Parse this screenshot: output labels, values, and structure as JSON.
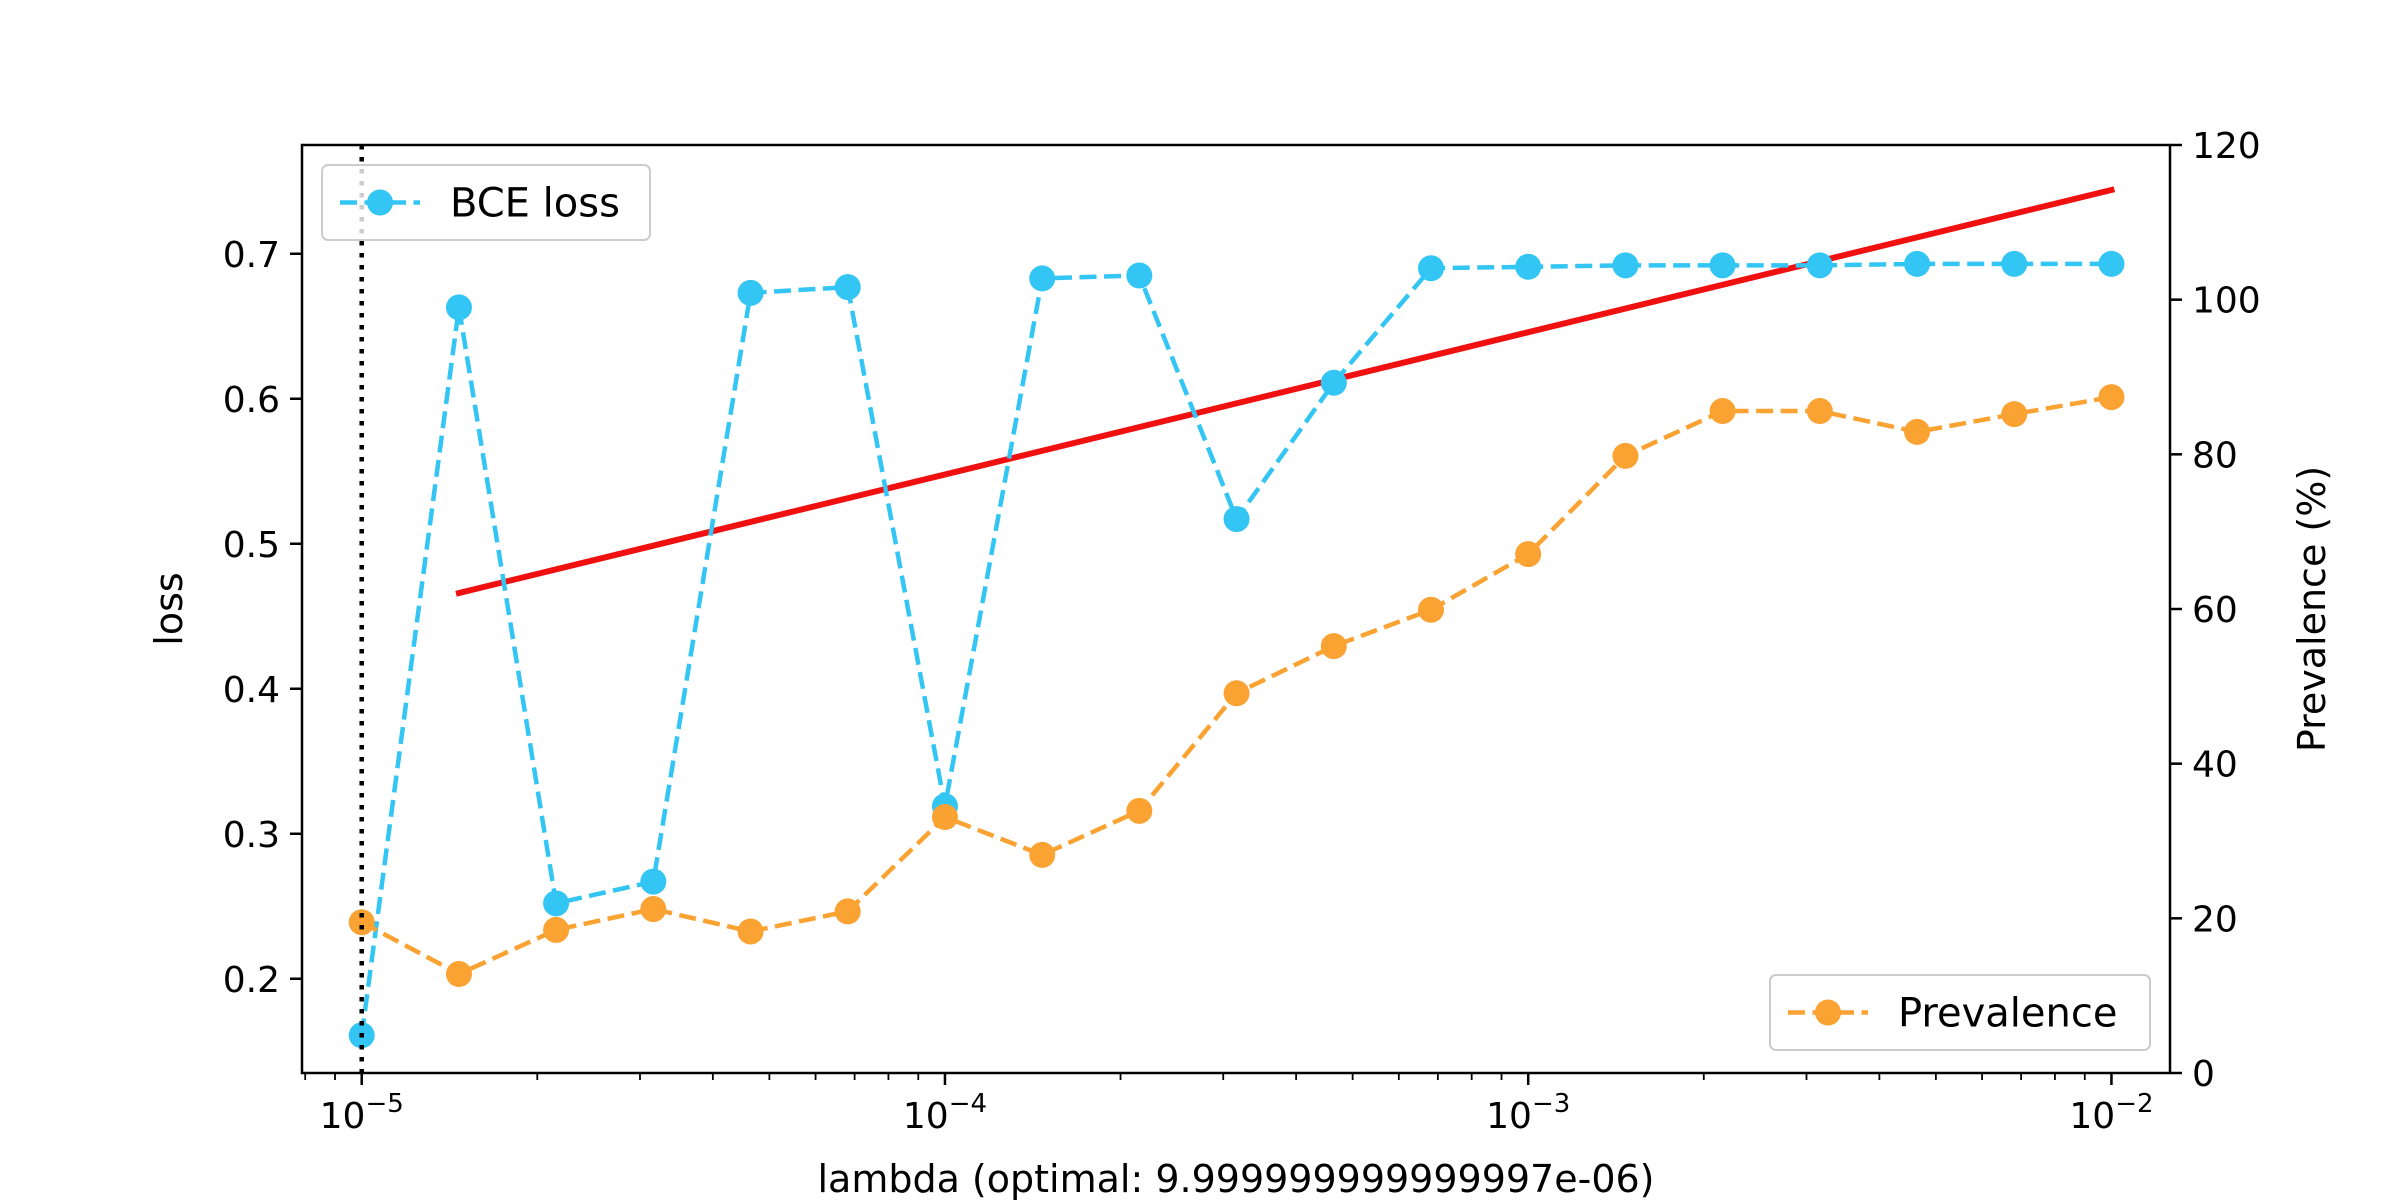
{
  "chart_data": {
    "type": "line",
    "xscale": "log",
    "xlabel": "lambda (optimal: 9.999999999999997e-06)",
    "ylabel_left": "loss",
    "ylabel_right": "Prevalence (%)",
    "xlim": [
      7.9e-06,
      0.0126
    ],
    "ylim_left": [
      0.135,
      0.775
    ],
    "ylim_right": [
      0,
      120
    ],
    "x_ticks": [
      {
        "value": 1e-05,
        "base": "10",
        "exp": "−5"
      },
      {
        "value": 0.0001,
        "base": "10",
        "exp": "−4"
      },
      {
        "value": 0.001,
        "base": "10",
        "exp": "−3"
      },
      {
        "value": 0.01,
        "base": "10",
        "exp": "−2"
      }
    ],
    "y_ticks_left": [
      "0.2",
      "0.3",
      "0.4",
      "0.5",
      "0.6",
      "0.7"
    ],
    "y_ticks_right": [
      "0",
      "20",
      "40",
      "60",
      "80",
      "100",
      "120"
    ],
    "x": [
      1e-05,
      1.468e-05,
      2.154e-05,
      3.162e-05,
      4.642e-05,
      6.813e-05,
      0.0001,
      0.0001468,
      0.0002154,
      0.0003162,
      0.0004642,
      0.0006813,
      0.001,
      0.001468,
      0.002154,
      0.003162,
      0.004642,
      0.006813,
      0.01
    ],
    "series": [
      {
        "name": "BCE loss",
        "axis": "left",
        "color": "#33c5f3",
        "style": "dashed",
        "marker": "circle",
        "values": [
          0.161,
          0.663,
          0.252,
          0.267,
          0.673,
          0.677,
          0.319,
          0.683,
          0.685,
          0.517,
          0.611,
          0.69,
          0.691,
          0.692,
          0.692,
          0.692,
          0.693,
          0.693,
          0.693
        ]
      },
      {
        "name": "Prevalence",
        "axis": "right",
        "color": "#faa232",
        "style": "dashed",
        "marker": "circle",
        "values": [
          19.5,
          12.8,
          18.5,
          21.2,
          18.3,
          20.9,
          33.1,
          28.2,
          33.9,
          49.1,
          55.2,
          59.9,
          67.1,
          79.8,
          85.6,
          85.6,
          82.9,
          85.2,
          87.4
        ]
      }
    ],
    "trend_line": {
      "axis": "left",
      "color": "#f01010",
      "x": [
        1.468e-05,
        0.01
      ],
      "values": [
        0.466,
        0.744
      ]
    },
    "optimal_line": {
      "x": 1e-05,
      "color": "#000000",
      "style": "dotted"
    },
    "legends": [
      {
        "label": "BCE loss",
        "placement": "top-left"
      },
      {
        "label": "Prevalence",
        "placement": "bottom-right"
      }
    ]
  }
}
